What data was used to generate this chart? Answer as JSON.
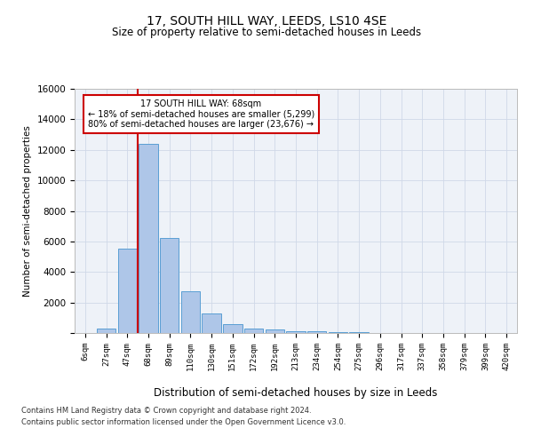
{
  "title": "17, SOUTH HILL WAY, LEEDS, LS10 4SE",
  "subtitle": "Size of property relative to semi-detached houses in Leeds",
  "xlabel": "Distribution of semi-detached houses by size in Leeds",
  "ylabel": "Number of semi-detached properties",
  "bar_labels": [
    "6sqm",
    "27sqm",
    "47sqm",
    "68sqm",
    "89sqm",
    "110sqm",
    "130sqm",
    "151sqm",
    "172sqm",
    "192sqm",
    "213sqm",
    "234sqm",
    "254sqm",
    "275sqm",
    "296sqm",
    "317sqm",
    "337sqm",
    "358sqm",
    "379sqm",
    "399sqm",
    "420sqm"
  ],
  "bar_values": [
    0,
    310,
    5500,
    12400,
    6200,
    2750,
    1300,
    560,
    290,
    210,
    130,
    90,
    60,
    40,
    0,
    0,
    0,
    0,
    0,
    0,
    0
  ],
  "bar_color": "#aec6e8",
  "bar_edge_color": "#5a9fd4",
  "property_line_index": 3,
  "annotation_title": "17 SOUTH HILL WAY: 68sqm",
  "annotation_smaller": "← 18% of semi-detached houses are smaller (5,299)",
  "annotation_larger": "80% of semi-detached houses are larger (23,676) →",
  "annotation_box_color": "#ffffff",
  "annotation_box_edge": "#cc0000",
  "vline_color": "#cc0000",
  "grid_color": "#d0d8e8",
  "background_color": "#eef2f8",
  "ylim": [
    0,
    16000
  ],
  "yticks": [
    0,
    2000,
    4000,
    6000,
    8000,
    10000,
    12000,
    14000,
    16000
  ],
  "title_fontsize": 10,
  "subtitle_fontsize": 8.5,
  "footer_line1": "Contains HM Land Registry data © Crown copyright and database right 2024.",
  "footer_line2": "Contains public sector information licensed under the Open Government Licence v3.0."
}
